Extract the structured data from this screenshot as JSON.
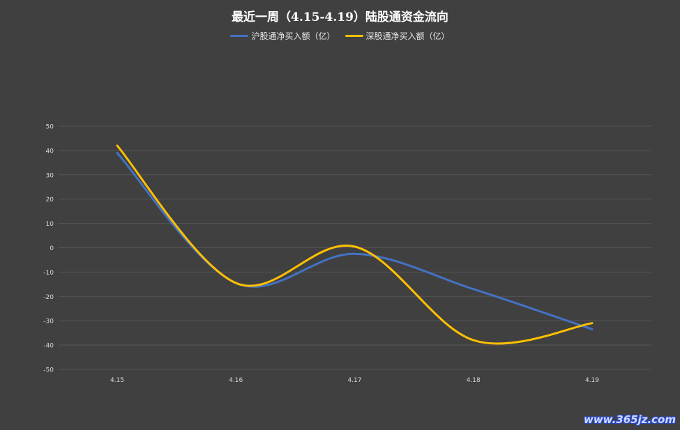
{
  "chart_data": {
    "type": "line",
    "title": "最近一周（4.15-4.19）陆股通资金流向",
    "categories": [
      "4.15",
      "4.16",
      "4.17",
      "4.18",
      "4.19"
    ],
    "ylim": [
      -50,
      50
    ],
    "yticks": [
      50,
      40,
      30,
      20,
      10,
      0,
      -10,
      -20,
      -30,
      -40,
      -50
    ],
    "grid": true,
    "legend": "top",
    "smooth": true,
    "series": [
      {
        "name": "沪股通净买入额（亿）",
        "color": "#4472c4",
        "values": [
          39,
          -14.5,
          -2.5,
          -17,
          -33.5
        ]
      },
      {
        "name": "深股通净买入额（亿）",
        "color": "#ffc000",
        "values": [
          42,
          -14.5,
          0.5,
          -38,
          -31
        ]
      }
    ]
  },
  "watermark": "www.365jz.com"
}
